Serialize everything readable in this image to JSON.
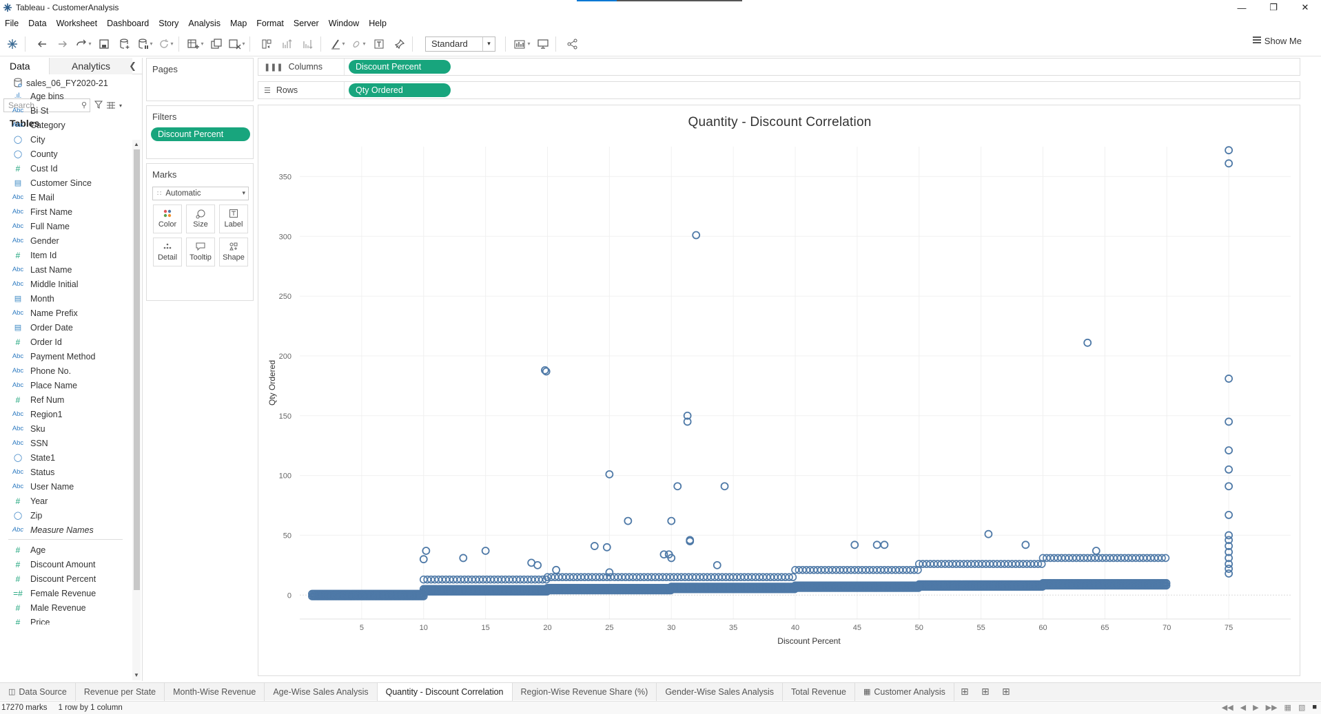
{
  "window": {
    "title": "Tableau - CustomerAnalysis"
  },
  "menu": [
    "File",
    "Data",
    "Worksheet",
    "Dashboard",
    "Story",
    "Analysis",
    "Map",
    "Format",
    "Server",
    "Window",
    "Help"
  ],
  "toolbar": {
    "fit_select": "Standard",
    "show_me": "Show Me"
  },
  "data_pane": {
    "tabs": [
      "Data",
      "Analytics"
    ],
    "source": "sales_06_FY2020-21",
    "search_placeholder": "Search",
    "tables_heading": "Tables",
    "dimensions": [
      {
        "type": "bars",
        "label": "Age bins"
      },
      {
        "type": "abc",
        "label": "Bi St"
      },
      {
        "type": "abc",
        "label": "Category"
      },
      {
        "type": "geo",
        "label": "City"
      },
      {
        "type": "geo",
        "label": "County"
      },
      {
        "type": "hash",
        "label": "Cust Id"
      },
      {
        "type": "date",
        "label": "Customer Since"
      },
      {
        "type": "abc",
        "label": "E Mail"
      },
      {
        "type": "abc",
        "label": "First Name"
      },
      {
        "type": "abc",
        "label": "Full Name"
      },
      {
        "type": "abc",
        "label": "Gender"
      },
      {
        "type": "hash",
        "label": "Item Id"
      },
      {
        "type": "abc",
        "label": "Last Name"
      },
      {
        "type": "abc",
        "label": "Middle Initial"
      },
      {
        "type": "date",
        "label": "Month"
      },
      {
        "type": "abc",
        "label": "Name Prefix"
      },
      {
        "type": "date",
        "label": "Order Date"
      },
      {
        "type": "hash",
        "label": "Order Id"
      },
      {
        "type": "abc",
        "label": "Payment Method"
      },
      {
        "type": "abc",
        "label": "Phone No."
      },
      {
        "type": "abc",
        "label": "Place Name"
      },
      {
        "type": "hash",
        "label": "Ref Num"
      },
      {
        "type": "abc",
        "label": "Region1"
      },
      {
        "type": "abc",
        "label": "Sku"
      },
      {
        "type": "abc",
        "label": "SSN"
      },
      {
        "type": "geo",
        "label": "State1"
      },
      {
        "type": "abc",
        "label": "Status"
      },
      {
        "type": "abc",
        "label": "User Name"
      },
      {
        "type": "hash",
        "label": "Year"
      },
      {
        "type": "geo",
        "label": "Zip"
      },
      {
        "type": "abc",
        "label": "Measure Names",
        "italic": true
      }
    ],
    "measures": [
      {
        "type": "hash",
        "label": "Age"
      },
      {
        "type": "hash",
        "label": "Discount Amount"
      },
      {
        "type": "hash",
        "label": "Discount Percent"
      },
      {
        "type": "calc",
        "label": "Female Revenue"
      },
      {
        "type": "hash",
        "label": "Male Revenue"
      },
      {
        "type": "hash",
        "label": "Price"
      }
    ]
  },
  "cards": {
    "pages_title": "Pages",
    "filters_title": "Filters",
    "filters": [
      "Discount Percent"
    ],
    "marks_title": "Marks",
    "mark_type": "Automatic",
    "mark_buttons": [
      "Color",
      "Size",
      "Label",
      "Detail",
      "Tooltip",
      "Shape"
    ]
  },
  "shelves": {
    "columns_label": "Columns",
    "columns_pill": "Discount Percent",
    "rows_label": "Rows",
    "rows_pill": "Qty Ordered"
  },
  "chart_data": {
    "type": "scatter",
    "title": "Quantity - Discount Correlation",
    "xlabel": "Discount Percent",
    "ylabel": "Qty Ordered",
    "xlim": [
      0,
      80
    ],
    "ylim": [
      -20,
      375
    ],
    "xticks": [
      5,
      10,
      15,
      20,
      25,
      30,
      35,
      40,
      45,
      50,
      55,
      60,
      65,
      70,
      75
    ],
    "yticks": [
      0,
      50,
      100,
      150,
      200,
      250,
      300,
      350
    ],
    "grid": true,
    "mark_color": "#4e79a7",
    "dense_bands": [
      {
        "x0": 1,
        "x1": 10,
        "y": 1
      },
      {
        "x0": 10,
        "x1": 20,
        "y": 5
      },
      {
        "x0": 20,
        "x1": 30,
        "y": 6
      },
      {
        "x0": 30,
        "x1": 40,
        "y": 7
      },
      {
        "x0": 40,
        "x1": 50,
        "y": 8
      },
      {
        "x0": 50,
        "x1": 60,
        "y": 9
      },
      {
        "x0": 60,
        "x1": 70,
        "y": 10
      }
    ],
    "points": [
      [
        10,
        30
      ],
      [
        10.2,
        37
      ],
      [
        13.2,
        31
      ],
      [
        15,
        37
      ],
      [
        18.7,
        27
      ],
      [
        19.2,
        25
      ],
      [
        19.8,
        188
      ],
      [
        19.9,
        187
      ],
      [
        20.7,
        21
      ],
      [
        23.8,
        41
      ],
      [
        24.8,
        40
      ],
      [
        25,
        101
      ],
      [
        25,
        19
      ],
      [
        26.5,
        62
      ],
      [
        29.4,
        34
      ],
      [
        29.8,
        34
      ],
      [
        30,
        62
      ],
      [
        30,
        31
      ],
      [
        30.5,
        91
      ],
      [
        31.3,
        150
      ],
      [
        31.3,
        145
      ],
      [
        31.5,
        46
      ],
      [
        31.5,
        45
      ],
      [
        32,
        301
      ],
      [
        33.7,
        25
      ],
      [
        34.3,
        91
      ],
      [
        44.8,
        42
      ],
      [
        46.6,
        42
      ],
      [
        47.2,
        42
      ],
      [
        55.6,
        51
      ],
      [
        58.6,
        42
      ],
      [
        63.6,
        211
      ],
      [
        64.3,
        37
      ],
      [
        75,
        372
      ],
      [
        75,
        361
      ],
      [
        75,
        181
      ],
      [
        75,
        145
      ],
      [
        75,
        121
      ],
      [
        75,
        105
      ],
      [
        75,
        91
      ],
      [
        75,
        67
      ],
      [
        75,
        50
      ],
      [
        75,
        46
      ],
      [
        75,
        41
      ],
      [
        75,
        36
      ],
      [
        75,
        31
      ],
      [
        75,
        26
      ],
      [
        75,
        22
      ],
      [
        75,
        18
      ]
    ],
    "upper_clusters": [
      {
        "x0": 10,
        "x1": 20,
        "y": 13
      },
      {
        "x0": 20,
        "x1": 40,
        "y": 15
      },
      {
        "x0": 40,
        "x1": 50,
        "y": 21
      },
      {
        "x0": 50,
        "x1": 60,
        "y": 26
      },
      {
        "x0": 60,
        "x1": 70,
        "y": 31
      }
    ]
  },
  "sheet_tabs": [
    {
      "label": "Data Source",
      "icon": "db"
    },
    {
      "label": "Revenue per State"
    },
    {
      "label": "Month-Wise Revenue"
    },
    {
      "label": "Age-Wise Sales Analysis"
    },
    {
      "label": "Quantity - Discount Correlation",
      "active": true
    },
    {
      "label": "Region-Wise Revenue Share (%)"
    },
    {
      "label": "Gender-Wise Sales Analysis"
    },
    {
      "label": "Total Revenue"
    },
    {
      "label": "Customer Analysis",
      "icon": "dash"
    }
  ],
  "status": {
    "marks": "17270 marks",
    "dims": "1 row by 1 column"
  }
}
